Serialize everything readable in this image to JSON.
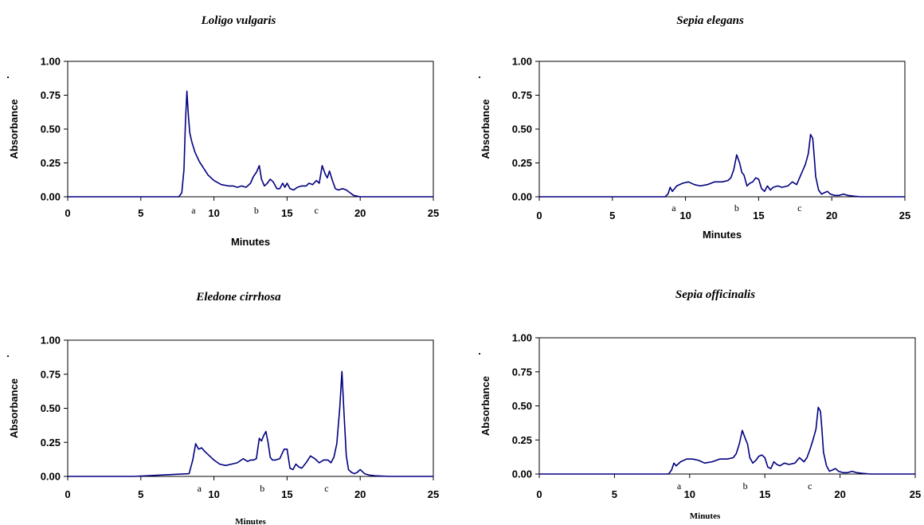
{
  "chart_data": [
    {
      "type": "line",
      "title": "Loligo vulgaris",
      "xlabel": "Minutes",
      "ylabel": "Absorbance",
      "ylabel_suffix": ".",
      "xlim": [
        0,
        25
      ],
      "ylim": [
        0,
        1
      ],
      "xticks": [
        "0",
        "5",
        "10",
        "15",
        "20",
        "25"
      ],
      "yticks": [
        "0.00",
        "0.25",
        "0.50",
        "0.75",
        "1.00"
      ],
      "markers": [
        {
          "label": "a",
          "x": 8.6
        },
        {
          "label": "b",
          "x": 12.9
        },
        {
          "label": "c",
          "x": 17.0
        }
      ],
      "series": [
        {
          "x": [
            0,
            7.6,
            7.8,
            7.95,
            8.05,
            8.15,
            8.25,
            8.35,
            8.5,
            8.7,
            9.0,
            9.3,
            9.6,
            10.0,
            10.5,
            11.0,
            11.3,
            11.6,
            11.9,
            12.2,
            12.5,
            12.7,
            12.9,
            13.1,
            13.25,
            13.45,
            13.65,
            13.85,
            14.05,
            14.3,
            14.5,
            14.7,
            14.85,
            15.0,
            15.2,
            15.45,
            15.7,
            16.0,
            16.3,
            16.5,
            16.75,
            17.0,
            17.2,
            17.4,
            17.6,
            17.75,
            17.9,
            18.1,
            18.3,
            18.5,
            18.8,
            19.05,
            19.3,
            19.55,
            20,
            25
          ],
          "y": [
            0,
            0,
            0.03,
            0.2,
            0.55,
            0.78,
            0.6,
            0.47,
            0.4,
            0.33,
            0.26,
            0.21,
            0.16,
            0.12,
            0.09,
            0.08,
            0.08,
            0.07,
            0.08,
            0.07,
            0.1,
            0.15,
            0.18,
            0.23,
            0.13,
            0.08,
            0.1,
            0.13,
            0.11,
            0.06,
            0.06,
            0.1,
            0.07,
            0.1,
            0.06,
            0.05,
            0.07,
            0.08,
            0.08,
            0.1,
            0.09,
            0.12,
            0.1,
            0.23,
            0.17,
            0.14,
            0.19,
            0.12,
            0.06,
            0.05,
            0.06,
            0.05,
            0.03,
            0.01,
            0,
            0
          ]
        }
      ]
    },
    {
      "type": "line",
      "title": "Sepia elegans",
      "xlabel": "Minutes",
      "ylabel": "Absorbance",
      "ylabel_suffix": ".",
      "xlim": [
        0,
        25
      ],
      "ylim": [
        0,
        1
      ],
      "xticks": [
        "0",
        "5",
        "10",
        "15",
        "20",
        "25"
      ],
      "yticks": [
        "0.00",
        "0.25",
        "0.50",
        "0.75",
        "1.00"
      ],
      "markers": [
        {
          "label": "a",
          "x": 9.2
        },
        {
          "label": "b",
          "x": 13.5
        },
        {
          "label": "c",
          "x": 17.8
        }
      ],
      "series": [
        {
          "x": [
            0,
            8.6,
            8.8,
            8.95,
            9.1,
            9.4,
            9.8,
            10.2,
            10.6,
            11.0,
            11.5,
            12.0,
            12.5,
            12.9,
            13.1,
            13.3,
            13.5,
            13.7,
            13.85,
            14.0,
            14.2,
            14.4,
            14.6,
            14.8,
            15.0,
            15.2,
            15.4,
            15.6,
            15.8,
            16.0,
            16.3,
            16.6,
            17.0,
            17.3,
            17.6,
            17.8,
            18.0,
            18.2,
            18.4,
            18.55,
            18.7,
            18.8,
            18.9,
            19.1,
            19.3,
            19.5,
            19.7,
            19.9,
            20.2,
            20.5,
            20.8,
            21.1,
            21.5,
            22,
            25
          ],
          "y": [
            0,
            0,
            0.02,
            0.07,
            0.04,
            0.08,
            0.1,
            0.11,
            0.09,
            0.08,
            0.09,
            0.11,
            0.11,
            0.12,
            0.14,
            0.2,
            0.31,
            0.25,
            0.18,
            0.16,
            0.08,
            0.1,
            0.11,
            0.14,
            0.13,
            0.06,
            0.04,
            0.08,
            0.05,
            0.07,
            0.08,
            0.07,
            0.08,
            0.11,
            0.09,
            0.14,
            0.19,
            0.24,
            0.32,
            0.46,
            0.43,
            0.3,
            0.15,
            0.05,
            0.02,
            0.03,
            0.04,
            0.02,
            0.01,
            0.01,
            0.02,
            0.01,
            0.005,
            0,
            0
          ]
        }
      ]
    },
    {
      "type": "line",
      "title": "Eledone cirrhosa",
      "xlabel": "Minutes",
      "ylabel": "Absorbance",
      "ylabel_suffix": ".",
      "xlim": [
        0,
        25
      ],
      "ylim": [
        0,
        1
      ],
      "xticks": [
        "0",
        "5",
        "10",
        "15",
        "20",
        "25"
      ],
      "yticks": [
        "0.00",
        "0.25",
        "0.50",
        "0.75",
        "1.00"
      ],
      "markers": [
        {
          "label": "a",
          "x": 9.0
        },
        {
          "label": "b",
          "x": 13.3
        },
        {
          "label": "c",
          "x": 17.7
        }
      ],
      "series": [
        {
          "x": [
            0,
            4.5,
            8.3,
            8.55,
            8.75,
            8.95,
            9.15,
            9.4,
            9.7,
            10.0,
            10.4,
            10.8,
            11.2,
            11.6,
            12.0,
            12.3,
            12.5,
            12.7,
            12.9,
            13.1,
            13.25,
            13.4,
            13.55,
            13.7,
            13.85,
            14.0,
            14.2,
            14.5,
            14.8,
            15.0,
            15.2,
            15.4,
            15.6,
            15.8,
            16.0,
            16.3,
            16.6,
            16.9,
            17.2,
            17.5,
            17.8,
            18.0,
            18.2,
            18.4,
            18.6,
            18.75,
            18.9,
            19.05,
            19.2,
            19.4,
            19.6,
            19.8,
            20.0,
            20.3,
            20.6,
            21.0,
            22,
            25
          ],
          "y": [
            0,
            0,
            0.02,
            0.12,
            0.24,
            0.2,
            0.21,
            0.18,
            0.15,
            0.12,
            0.09,
            0.08,
            0.09,
            0.1,
            0.13,
            0.11,
            0.12,
            0.12,
            0.13,
            0.28,
            0.26,
            0.3,
            0.33,
            0.25,
            0.14,
            0.12,
            0.12,
            0.13,
            0.2,
            0.2,
            0.06,
            0.05,
            0.09,
            0.07,
            0.06,
            0.1,
            0.15,
            0.13,
            0.1,
            0.12,
            0.12,
            0.1,
            0.14,
            0.24,
            0.5,
            0.77,
            0.45,
            0.15,
            0.05,
            0.03,
            0.02,
            0.03,
            0.05,
            0.02,
            0.01,
            0.005,
            0,
            0
          ]
        }
      ]
    },
    {
      "type": "line",
      "title": "Sepia officinalis",
      "xlabel": "Minutes",
      "ylabel": "Absorbance",
      "ylabel_suffix": ".",
      "xlim": [
        0,
        25
      ],
      "ylim": [
        0,
        1
      ],
      "xticks": [
        "0",
        "5",
        "10",
        "15",
        "20",
        "25"
      ],
      "yticks": [
        "0.00",
        "0.25",
        "0.50",
        "0.75",
        "1.00"
      ],
      "markers": [
        {
          "label": "a",
          "x": 9.3
        },
        {
          "label": "b",
          "x": 13.7
        },
        {
          "label": "c",
          "x": 18.0
        }
      ],
      "series": [
        {
          "x": [
            0,
            8.6,
            8.8,
            8.95,
            9.1,
            9.4,
            9.8,
            10.2,
            10.6,
            11.0,
            11.5,
            12.0,
            12.5,
            12.9,
            13.1,
            13.3,
            13.5,
            13.7,
            13.85,
            14.0,
            14.2,
            14.4,
            14.6,
            14.8,
            15.0,
            15.2,
            15.4,
            15.6,
            15.8,
            16.0,
            16.3,
            16.6,
            17.0,
            17.3,
            17.6,
            17.8,
            18.0,
            18.2,
            18.4,
            18.55,
            18.7,
            18.8,
            18.9,
            19.1,
            19.3,
            19.5,
            19.7,
            19.9,
            20.2,
            20.5,
            20.8,
            21.1,
            21.5,
            22,
            25
          ],
          "y": [
            0,
            0,
            0.03,
            0.08,
            0.06,
            0.09,
            0.11,
            0.11,
            0.1,
            0.08,
            0.09,
            0.11,
            0.11,
            0.12,
            0.15,
            0.22,
            0.32,
            0.26,
            0.22,
            0.12,
            0.08,
            0.1,
            0.13,
            0.14,
            0.12,
            0.05,
            0.04,
            0.09,
            0.07,
            0.06,
            0.08,
            0.07,
            0.08,
            0.12,
            0.09,
            0.12,
            0.18,
            0.25,
            0.33,
            0.49,
            0.46,
            0.32,
            0.16,
            0.06,
            0.02,
            0.03,
            0.04,
            0.02,
            0.01,
            0.01,
            0.02,
            0.01,
            0.005,
            0,
            0
          ]
        }
      ]
    }
  ]
}
